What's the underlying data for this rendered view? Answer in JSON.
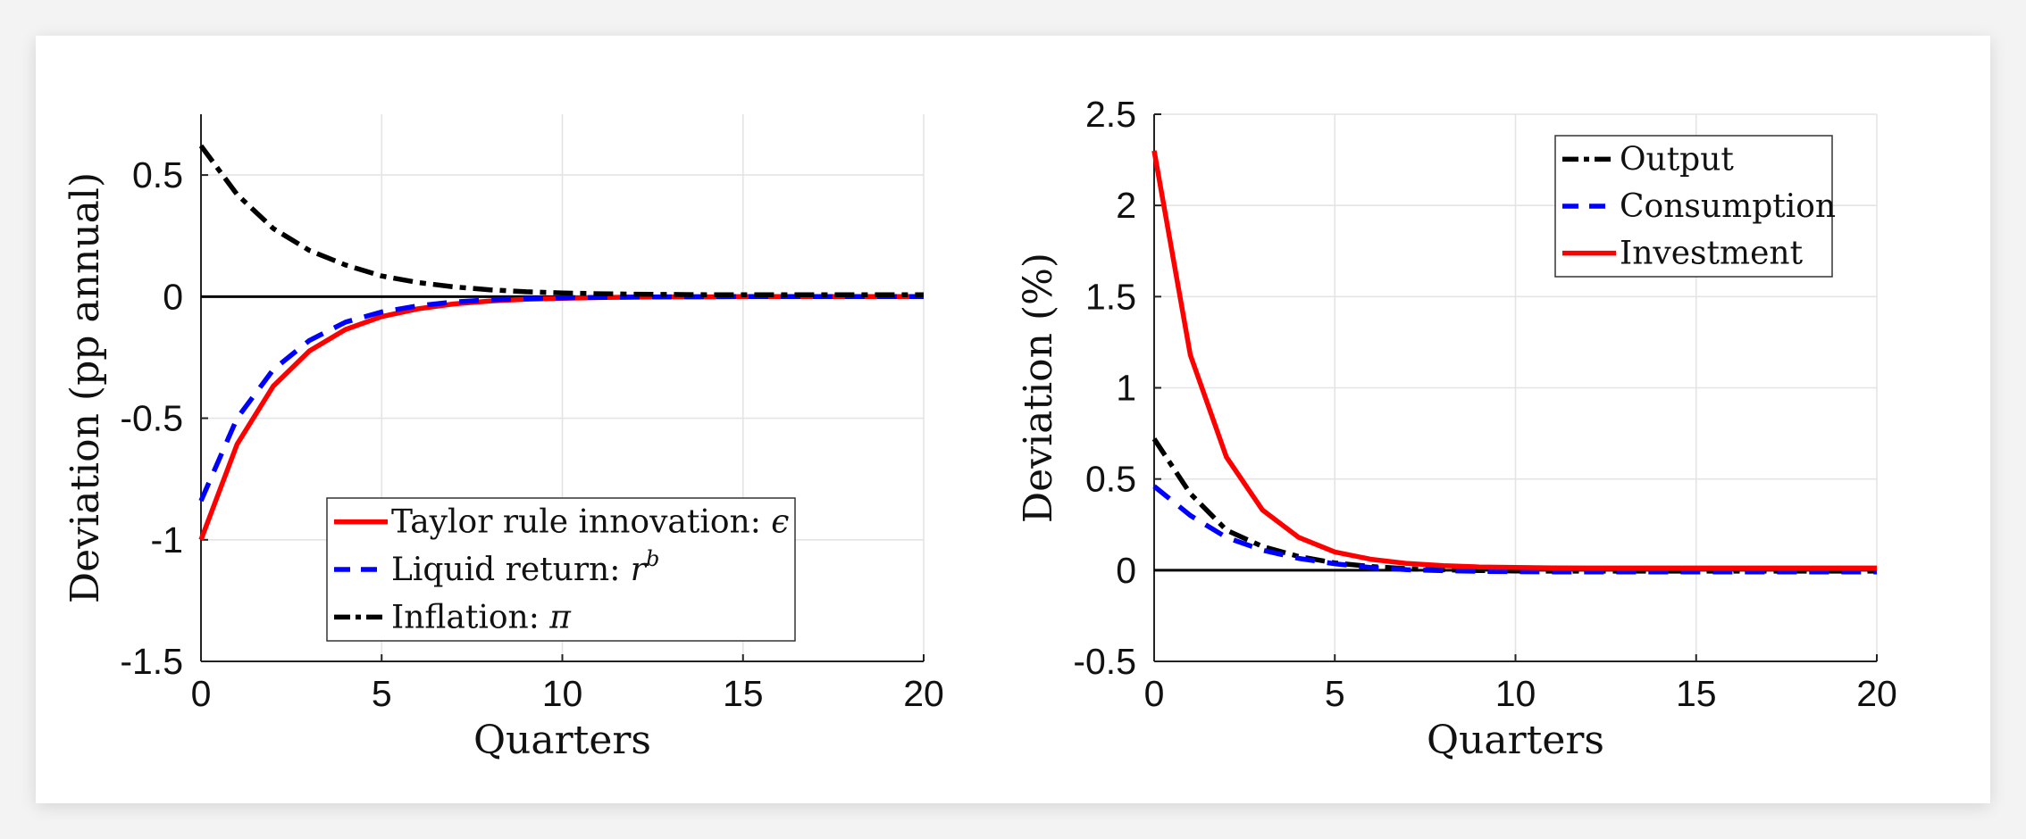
{
  "chart_data": [
    {
      "type": "line",
      "xlabel": "Quarters",
      "ylabel": "Deviation (pp annual)",
      "xlim": [
        0,
        20
      ],
      "ylim": [
        -1.5,
        0.75
      ],
      "xticks": [
        0,
        5,
        10,
        15,
        20
      ],
      "yticks": [
        0.5,
        0,
        -0.5,
        -1,
        -1.5
      ],
      "ytick_labels": [
        "0.5",
        "0",
        "-0.5",
        "-1",
        "-1.5"
      ],
      "xtick_labels": [
        "0",
        "5",
        "10",
        "15",
        "20"
      ],
      "grid": true,
      "legend_position": "bottom-right",
      "zero_line": true,
      "x": [
        0,
        1,
        2,
        3,
        4,
        5,
        6,
        7,
        8,
        9,
        10,
        11,
        12,
        13,
        14,
        15,
        16,
        17,
        18,
        19,
        20
      ],
      "series": [
        {
          "name": "Taylor rule innovation: ε",
          "name_base": "Taylor rule innovation: ",
          "name_symbol": "ϵ",
          "color": "#ff0000",
          "style": "solid",
          "values": [
            -1.0,
            -0.607,
            -0.368,
            -0.223,
            -0.135,
            -0.082,
            -0.05,
            -0.03,
            -0.018,
            -0.011,
            -0.007,
            -0.004,
            -0.002,
            -0.001,
            -0.001,
            0,
            0,
            0,
            0,
            0,
            0
          ]
        },
        {
          "name": "Liquid return: r^b",
          "name_base": "Liquid return: ",
          "name_symbol": "r",
          "name_sup": "b",
          "color": "#0000ff",
          "style": "dashed",
          "values": [
            -0.84,
            -0.5,
            -0.3,
            -0.18,
            -0.105,
            -0.063,
            -0.038,
            -0.022,
            -0.013,
            -0.008,
            -0.005,
            -0.003,
            -0.002,
            -0.001,
            0,
            0,
            0,
            0,
            0,
            0,
            0
          ]
        },
        {
          "name": "Inflation: π",
          "name_base": "Inflation: ",
          "name_symbol": "π",
          "color": "#000000",
          "style": "dashdot",
          "values": [
            0.62,
            0.42,
            0.28,
            0.19,
            0.13,
            0.085,
            0.058,
            0.04,
            0.028,
            0.02,
            0.015,
            0.012,
            0.01,
            0.009,
            0.008,
            0.008,
            0.008,
            0.008,
            0.008,
            0.008,
            0.008
          ]
        }
      ]
    },
    {
      "type": "line",
      "xlabel": "Quarters",
      "ylabel": "Deviation (%)",
      "xlim": [
        0,
        20
      ],
      "ylim": [
        -0.5,
        2.5
      ],
      "xticks": [
        0,
        5,
        10,
        15,
        20
      ],
      "yticks": [
        2.5,
        2,
        1.5,
        1,
        0.5,
        0,
        -0.5
      ],
      "ytick_labels": [
        "2.5",
        "2",
        "1.5",
        "1",
        "0.5",
        "0",
        "-0.5"
      ],
      "xtick_labels": [
        "0",
        "5",
        "10",
        "15",
        "20"
      ],
      "grid": true,
      "legend_position": "top-right",
      "zero_line": true,
      "x": [
        0,
        1,
        2,
        3,
        4,
        5,
        6,
        7,
        8,
        9,
        10,
        11,
        12,
        13,
        14,
        15,
        16,
        17,
        18,
        19,
        20
      ],
      "series": [
        {
          "name": "Output",
          "name_base": "Output",
          "color": "#000000",
          "style": "dashdot",
          "values": [
            0.72,
            0.42,
            0.22,
            0.13,
            0.075,
            0.04,
            0.02,
            0.008,
            0.002,
            -0.002,
            -0.004,
            -0.005,
            -0.005,
            -0.005,
            -0.005,
            -0.005,
            -0.005,
            -0.005,
            -0.005,
            -0.005,
            -0.005
          ]
        },
        {
          "name": "Consumption",
          "name_base": "Consumption",
          "color": "#0000ff",
          "style": "dashed",
          "values": [
            0.46,
            0.3,
            0.18,
            0.11,
            0.065,
            0.035,
            0.015,
            0.003,
            -0.003,
            -0.006,
            -0.008,
            -0.009,
            -0.009,
            -0.009,
            -0.009,
            -0.009,
            -0.009,
            -0.009,
            -0.009,
            -0.009,
            -0.009
          ]
        },
        {
          "name": "Investment",
          "name_base": "Investment",
          "color": "#ff0000",
          "style": "solid",
          "values": [
            2.3,
            1.18,
            0.62,
            0.33,
            0.18,
            0.1,
            0.06,
            0.037,
            0.025,
            0.018,
            0.015,
            0.013,
            0.012,
            0.012,
            0.012,
            0.012,
            0.012,
            0.012,
            0.012,
            0.012,
            0.012
          ]
        }
      ]
    }
  ]
}
